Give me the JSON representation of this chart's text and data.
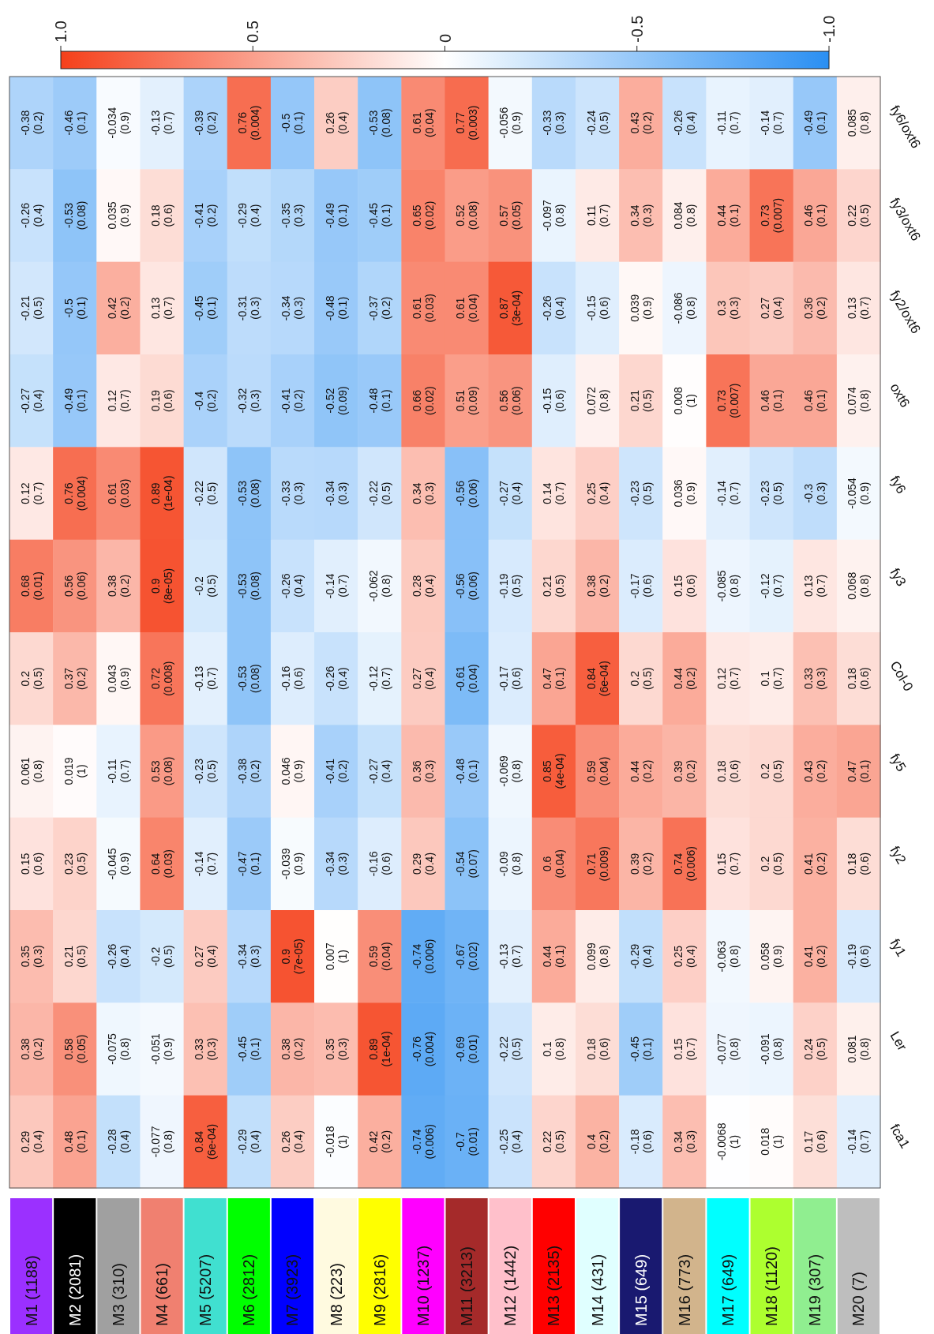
{
  "chart_data": {
    "type": "heatmap",
    "categories": [
      "M1 (1188)",
      "M2 (2081)",
      "M3 (310)",
      "M4 (661)",
      "M5 (5207)",
      "M6 (2812)",
      "M7 (3923)",
      "M8 (223)",
      "M9 (2816)",
      "M10 (1237)",
      "M11 (3213)",
      "M12 (1442)",
      "M13 (2135)",
      "M14 (431)",
      "M15 (649)",
      "M16 (773)",
      "M17 (649)",
      "M18 (1120)",
      "M19 (307)",
      "M20 (7)"
    ],
    "y_categories": [
      "fy6/oxt6",
      "fy3/oxt6",
      "fy2/oxt6",
      "oxt6",
      "fy6",
      "fy3",
      "Col-0",
      "fy5",
      "fy2",
      "fy1",
      "Ler",
      "fca1"
    ],
    "cells": [
      [
        -0.38,
        -0.46,
        -0.034,
        -0.13,
        -0.39,
        0.76,
        -0.5,
        0.26,
        -0.53,
        0.61,
        0.77,
        -0.056,
        -0.33,
        -0.24,
        0.43,
        -0.26,
        -0.11,
        -0.14,
        -0.49,
        0.085
      ],
      [
        -0.26,
        -0.53,
        0.035,
        0.18,
        -0.41,
        -0.29,
        -0.35,
        -0.49,
        -0.45,
        0.65,
        0.52,
        0.57,
        -0.097,
        0.11,
        0.34,
        0.084,
        0.44,
        0.73,
        0.46,
        0.22
      ],
      [
        -0.21,
        -0.5,
        0.42,
        0.13,
        -0.45,
        -0.31,
        -0.34,
        -0.48,
        -0.37,
        0.61,
        0.61,
        0.87,
        -0.26,
        -0.15,
        0.039,
        -0.086,
        0.3,
        0.27,
        0.36,
        0.13
      ],
      [
        -0.27,
        -0.49,
        0.12,
        0.19,
        -0.4,
        -0.32,
        -0.41,
        -0.52,
        -0.48,
        0.66,
        0.51,
        0.56,
        -0.15,
        0.072,
        0.21,
        0.008,
        0.73,
        0.46,
        0.46,
        0.074
      ],
      [
        0.12,
        0.76,
        0.61,
        0.89,
        -0.22,
        -0.53,
        -0.33,
        -0.34,
        -0.22,
        0.34,
        -0.56,
        -0.27,
        0.14,
        0.25,
        -0.23,
        0.036,
        -0.14,
        -0.23,
        -0.3,
        -0.054
      ],
      [
        0.68,
        0.56,
        0.38,
        0.9,
        -0.2,
        -0.53,
        -0.26,
        -0.14,
        -0.062,
        0.28,
        -0.56,
        -0.19,
        0.21,
        0.38,
        -0.17,
        0.15,
        -0.085,
        -0.12,
        0.13,
        0.068
      ],
      [
        0.2,
        0.37,
        0.043,
        0.72,
        -0.13,
        -0.53,
        -0.16,
        -0.26,
        -0.12,
        0.27,
        -0.61,
        -0.17,
        0.47,
        0.84,
        0.2,
        0.44,
        0.12,
        0.1,
        0.33,
        0.18
      ],
      [
        0.061,
        0.019,
        -0.11,
        0.53,
        -0.23,
        -0.38,
        0.046,
        -0.41,
        -0.27,
        0.36,
        -0.48,
        -0.069,
        0.85,
        0.59,
        0.44,
        0.39,
        0.18,
        0.2,
        0.43,
        0.47
      ],
      [
        0.15,
        0.23,
        -0.045,
        0.64,
        -0.14,
        -0.47,
        -0.039,
        -0.34,
        -0.16,
        0.29,
        -0.54,
        -0.09,
        0.6,
        0.71,
        0.39,
        0.74,
        0.15,
        0.2,
        0.41,
        0.18
      ],
      [
        0.35,
        0.21,
        -0.26,
        -0.2,
        0.27,
        -0.34,
        0.9,
        0.007,
        0.59,
        -0.74,
        -0.67,
        -0.13,
        0.44,
        0.099,
        -0.29,
        0.25,
        -0.063,
        0.058,
        0.41,
        -0.19
      ],
      [
        0.38,
        0.58,
        -0.075,
        -0.051,
        0.33,
        -0.45,
        0.38,
        0.35,
        0.89,
        -0.76,
        -0.69,
        -0.22,
        0.1,
        0.18,
        -0.45,
        0.15,
        -0.077,
        -0.091,
        0.24,
        0.081
      ],
      [
        0.29,
        0.48,
        -0.28,
        -0.077,
        0.84,
        -0.29,
        0.26,
        -0.018,
        0.42,
        -0.74,
        -0.7,
        -0.25,
        0.22,
        0.4,
        -0.18,
        0.34,
        -0.0068,
        0.018,
        0.17,
        -0.14
      ]
    ],
    "cell_labels": [
      [
        "-0.38\n(0.2)",
        "-0.46\n(0.1)",
        "-0.034\n(0.9)",
        "-0.13\n(0.7)",
        "-0.39\n(0.2)",
        "0.76\n(0.004)",
        "-0.5\n(0.1)",
        "0.26\n(0.4)",
        "-0.53\n(0.08)",
        "0.61\n(0.04)",
        "0.77\n(0.003)",
        "-0.056\n(0.9)",
        "-0.33\n(0.3)",
        "-0.24\n(0.5)",
        "0.43\n(0.2)",
        "-0.26\n(0.4)",
        "-0.11\n(0.7)",
        "-0.14\n(0.7)",
        "-0.49\n(0.1)",
        "0.085\n(0.8)"
      ],
      [
        "-0.26\n(0.4)",
        "-0.53\n(0.08)",
        "0.035\n(0.9)",
        "0.18\n(0.6)",
        "-0.41\n(0.2)",
        "-0.29\n(0.4)",
        "-0.35\n(0.3)",
        "-0.49\n(0.1)",
        "-0.45\n(0.1)",
        "0.65\n(0.02)",
        "0.52\n(0.08)",
        "0.57\n(0.05)",
        "-0.097\n(0.8)",
        "0.11\n(0.7)",
        "0.34\n(0.3)",
        "0.084\n(0.8)",
        "0.44\n(0.1)",
        "0.73\n(0.007)",
        "0.46\n(0.1)",
        "0.22\n(0.5)"
      ],
      [
        "-0.21\n(0.5)",
        "-0.5\n(0.1)",
        "0.42\n(0.2)",
        "0.13\n(0.7)",
        "-0.45\n(0.1)",
        "-0.31\n(0.3)",
        "-0.34\n(0.3)",
        "-0.48\n(0.1)",
        "-0.37\n(0.2)",
        "0.61\n(0.03)",
        "0.61\n(0.04)",
        "0.87\n(3e-04)",
        "-0.26\n(0.4)",
        "-0.15\n(0.6)",
        "0.039\n(0.9)",
        "-0.086\n(0.8)",
        "0.3\n(0.3)",
        "0.27\n(0.4)",
        "0.36\n(0.2)",
        "0.13\n(0.7)"
      ],
      [
        "-0.27\n(0.4)",
        "-0.49\n(0.1)",
        "0.12\n(0.7)",
        "0.19\n(0.6)",
        "-0.4\n(0.2)",
        "-0.32\n(0.3)",
        "-0.41\n(0.2)",
        "-0.52\n(0.09)",
        "-0.48\n(0.1)",
        "0.66\n(0.02)",
        "0.51\n(0.09)",
        "0.56\n(0.06)",
        "-0.15\n(0.6)",
        "0.072\n(0.8)",
        "0.21\n(0.5)",
        "0.008\n(1)",
        "0.73\n(0.007)",
        "0.46\n(0.1)",
        "0.46\n(0.1)",
        "0.074\n(0.8)"
      ],
      [
        "0.12\n(0.7)",
        "0.76\n(0.004)",
        "0.61\n(0.03)",
        "0.89\n(1e-04)",
        "-0.22\n(0.5)",
        "-0.53\n(0.08)",
        "-0.33\n(0.3)",
        "-0.34\n(0.3)",
        "-0.22\n(0.5)",
        "0.34\n(0.3)",
        "-0.56\n(0.06)",
        "-0.27\n(0.4)",
        "0.14\n(0.7)",
        "0.25\n(0.4)",
        "-0.23\n(0.5)",
        "0.036\n(0.9)",
        "-0.14\n(0.7)",
        "-0.23\n(0.5)",
        "-0.3\n(0.3)",
        "-0.054\n(0.9)"
      ],
      [
        "0.68\n(0.01)",
        "0.56\n(0.06)",
        "0.38\n(0.2)",
        "0.9\n(8e-05)",
        "-0.2\n(0.5)",
        "-0.53\n(0.08)",
        "-0.26\n(0.4)",
        "-0.14\n(0.7)",
        "-0.062\n(0.8)",
        "0.28\n(0.4)",
        "-0.56\n(0.06)",
        "-0.19\n(0.5)",
        "0.21\n(0.5)",
        "0.38\n(0.2)",
        "-0.17\n(0.6)",
        "0.15\n(0.6)",
        "-0.085\n(0.8)",
        "-0.12\n(0.7)",
        "0.13\n(0.7)",
        "0.068\n(0.8)"
      ],
      [
        "0.2\n(0.5)",
        "0.37\n(0.2)",
        "0.043\n(0.9)",
        "0.72\n(0.008)",
        "-0.13\n(0.7)",
        "-0.53\n(0.08)",
        "-0.16\n(0.6)",
        "-0.26\n(0.4)",
        "-0.12\n(0.7)",
        "0.27\n(0.4)",
        "-0.61\n(0.04)",
        "-0.17\n(0.6)",
        "0.47\n(0.1)",
        "0.84\n(6e-04)",
        "0.2\n(0.5)",
        "0.44\n(0.2)",
        "0.12\n(0.7)",
        "0.1\n(0.7)",
        "0.33\n(0.3)",
        "0.18\n(0.6)"
      ],
      [
        "0.061\n(0.8)",
        "0.019\n(1)",
        "-0.11\n(0.7)",
        "0.53\n(0.08)",
        "-0.23\n(0.5)",
        "-0.38\n(0.2)",
        "0.046\n(0.9)",
        "-0.41\n(0.2)",
        "-0.27\n(0.4)",
        "0.36\n(0.3)",
        "-0.48\n(0.1)",
        "-0.069\n(0.8)",
        "0.85\n(4e-04)",
        "0.59\n(0.04)",
        "0.44\n(0.2)",
        "0.39\n(0.2)",
        "0.18\n(0.6)",
        "0.2\n(0.5)",
        "0.43\n(0.2)",
        "0.47\n(0.1)"
      ],
      [
        "0.15\n(0.6)",
        "0.23\n(0.5)",
        "-0.045\n(0.9)",
        "0.64\n(0.03)",
        "-0.14\n(0.7)",
        "-0.47\n(0.1)",
        "-0.039\n(0.9)",
        "-0.34\n(0.3)",
        "-0.16\n(0.6)",
        "0.29\n(0.4)",
        "-0.54\n(0.07)",
        "-0.09\n(0.8)",
        "0.6\n(0.04)",
        "0.71\n(0.009)",
        "0.39\n(0.2)",
        "0.74\n(0.006)",
        "0.15\n(0.7)",
        "0.2\n(0.5)",
        "0.41\n(0.2)",
        "0.18\n(0.6)"
      ],
      [
        "0.35\n(0.3)",
        "0.21\n(0.5)",
        "-0.26\n(0.4)",
        "-0.2\n(0.5)",
        "0.27\n(0.4)",
        "-0.34\n(0.3)",
        "0.9\n(7e-05)",
        "0.007\n(1)",
        "0.59\n(0.04)",
        "-0.74\n(0.006)",
        "-0.67\n(0.02)",
        "-0.13\n(0.7)",
        "0.44\n(0.1)",
        "0.099\n(0.8)",
        "-0.29\n(0.4)",
        "0.25\n(0.4)",
        "-0.063\n(0.8)",
        "0.058\n(0.9)",
        "0.41\n(0.2)",
        "-0.19\n(0.6)"
      ],
      [
        "0.38\n(0.2)",
        "0.58\n(0.05)",
        "-0.075\n(0.8)",
        "-0.051\n(0.9)",
        "0.33\n(0.3)",
        "-0.45\n(0.1)",
        "0.38\n(0.2)",
        "0.35\n(0.3)",
        "0.89\n(1e-04)",
        "-0.76\n(0.004)",
        "-0.69\n(0.01)",
        "-0.22\n(0.5)",
        "0.1\n(0.8)",
        "0.18\n(0.6)",
        "-0.45\n(0.1)",
        "0.15\n(0.7)",
        "-0.077\n(0.8)",
        "-0.091\n(0.8)",
        "0.24\n(0.5)",
        "0.081\n(0.8)"
      ],
      [
        "0.29\n(0.4)",
        "0.48\n(0.1)",
        "-0.28\n(0.4)",
        "-0.077\n(0.8)",
        "0.84\n(6e-04)",
        "-0.29\n(0.4)",
        "0.26\n(0.4)",
        "-0.018\n(1)",
        "0.42\n(0.2)",
        "-0.74\n(0.006)",
        "-0.7\n(0.01)",
        "-0.25\n(0.4)",
        "0.22\n(0.5)",
        "0.4\n(0.2)",
        "-0.18\n(0.6)",
        "0.34\n(0.3)",
        "-0.0068\n(1)",
        "0.018\n(1)",
        "0.17\n(0.6)",
        "-0.14\n(0.7)"
      ]
    ],
    "clim": [
      -1,
      1
    ],
    "cticks": [
      {
        "value": 1,
        "label": "1.0"
      },
      0.5,
      0,
      -0.5,
      {
        "value": -1,
        "label": "-1.0"
      }
    ]
  }
}
